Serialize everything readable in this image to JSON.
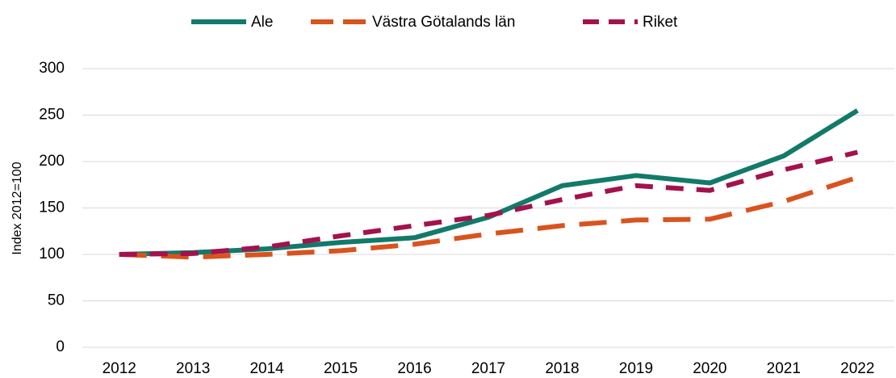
{
  "chart_data": {
    "type": "line",
    "categories": [
      "2012",
      "2013",
      "2014",
      "2015",
      "2016",
      "2017",
      "2018",
      "2019",
      "2020",
      "2021",
      "2022"
    ],
    "y_label": "Index 2012=100",
    "series": [
      {
        "name": "Ale",
        "color": "#127a6a",
        "dash": "solid",
        "values": [
          100,
          102,
          106,
          113,
          118,
          140,
          174,
          185,
          177,
          206,
          255
        ]
      },
      {
        "name": "Västra Götalands län",
        "color": "#d9531e",
        "dash": "long",
        "values": [
          100,
          97,
          100,
          104,
          111,
          122,
          131,
          137,
          138,
          157,
          183
        ]
      },
      {
        "name": "Riket",
        "color": "#a3124c",
        "dash": "short",
        "values": [
          100,
          101,
          108,
          120,
          131,
          142,
          159,
          174,
          169,
          191,
          210
        ]
      }
    ],
    "ylim": [
      0,
      300
    ],
    "yticks": [
      0,
      50,
      100,
      150,
      200,
      250,
      300
    ],
    "grid": true,
    "legend": "top"
  }
}
